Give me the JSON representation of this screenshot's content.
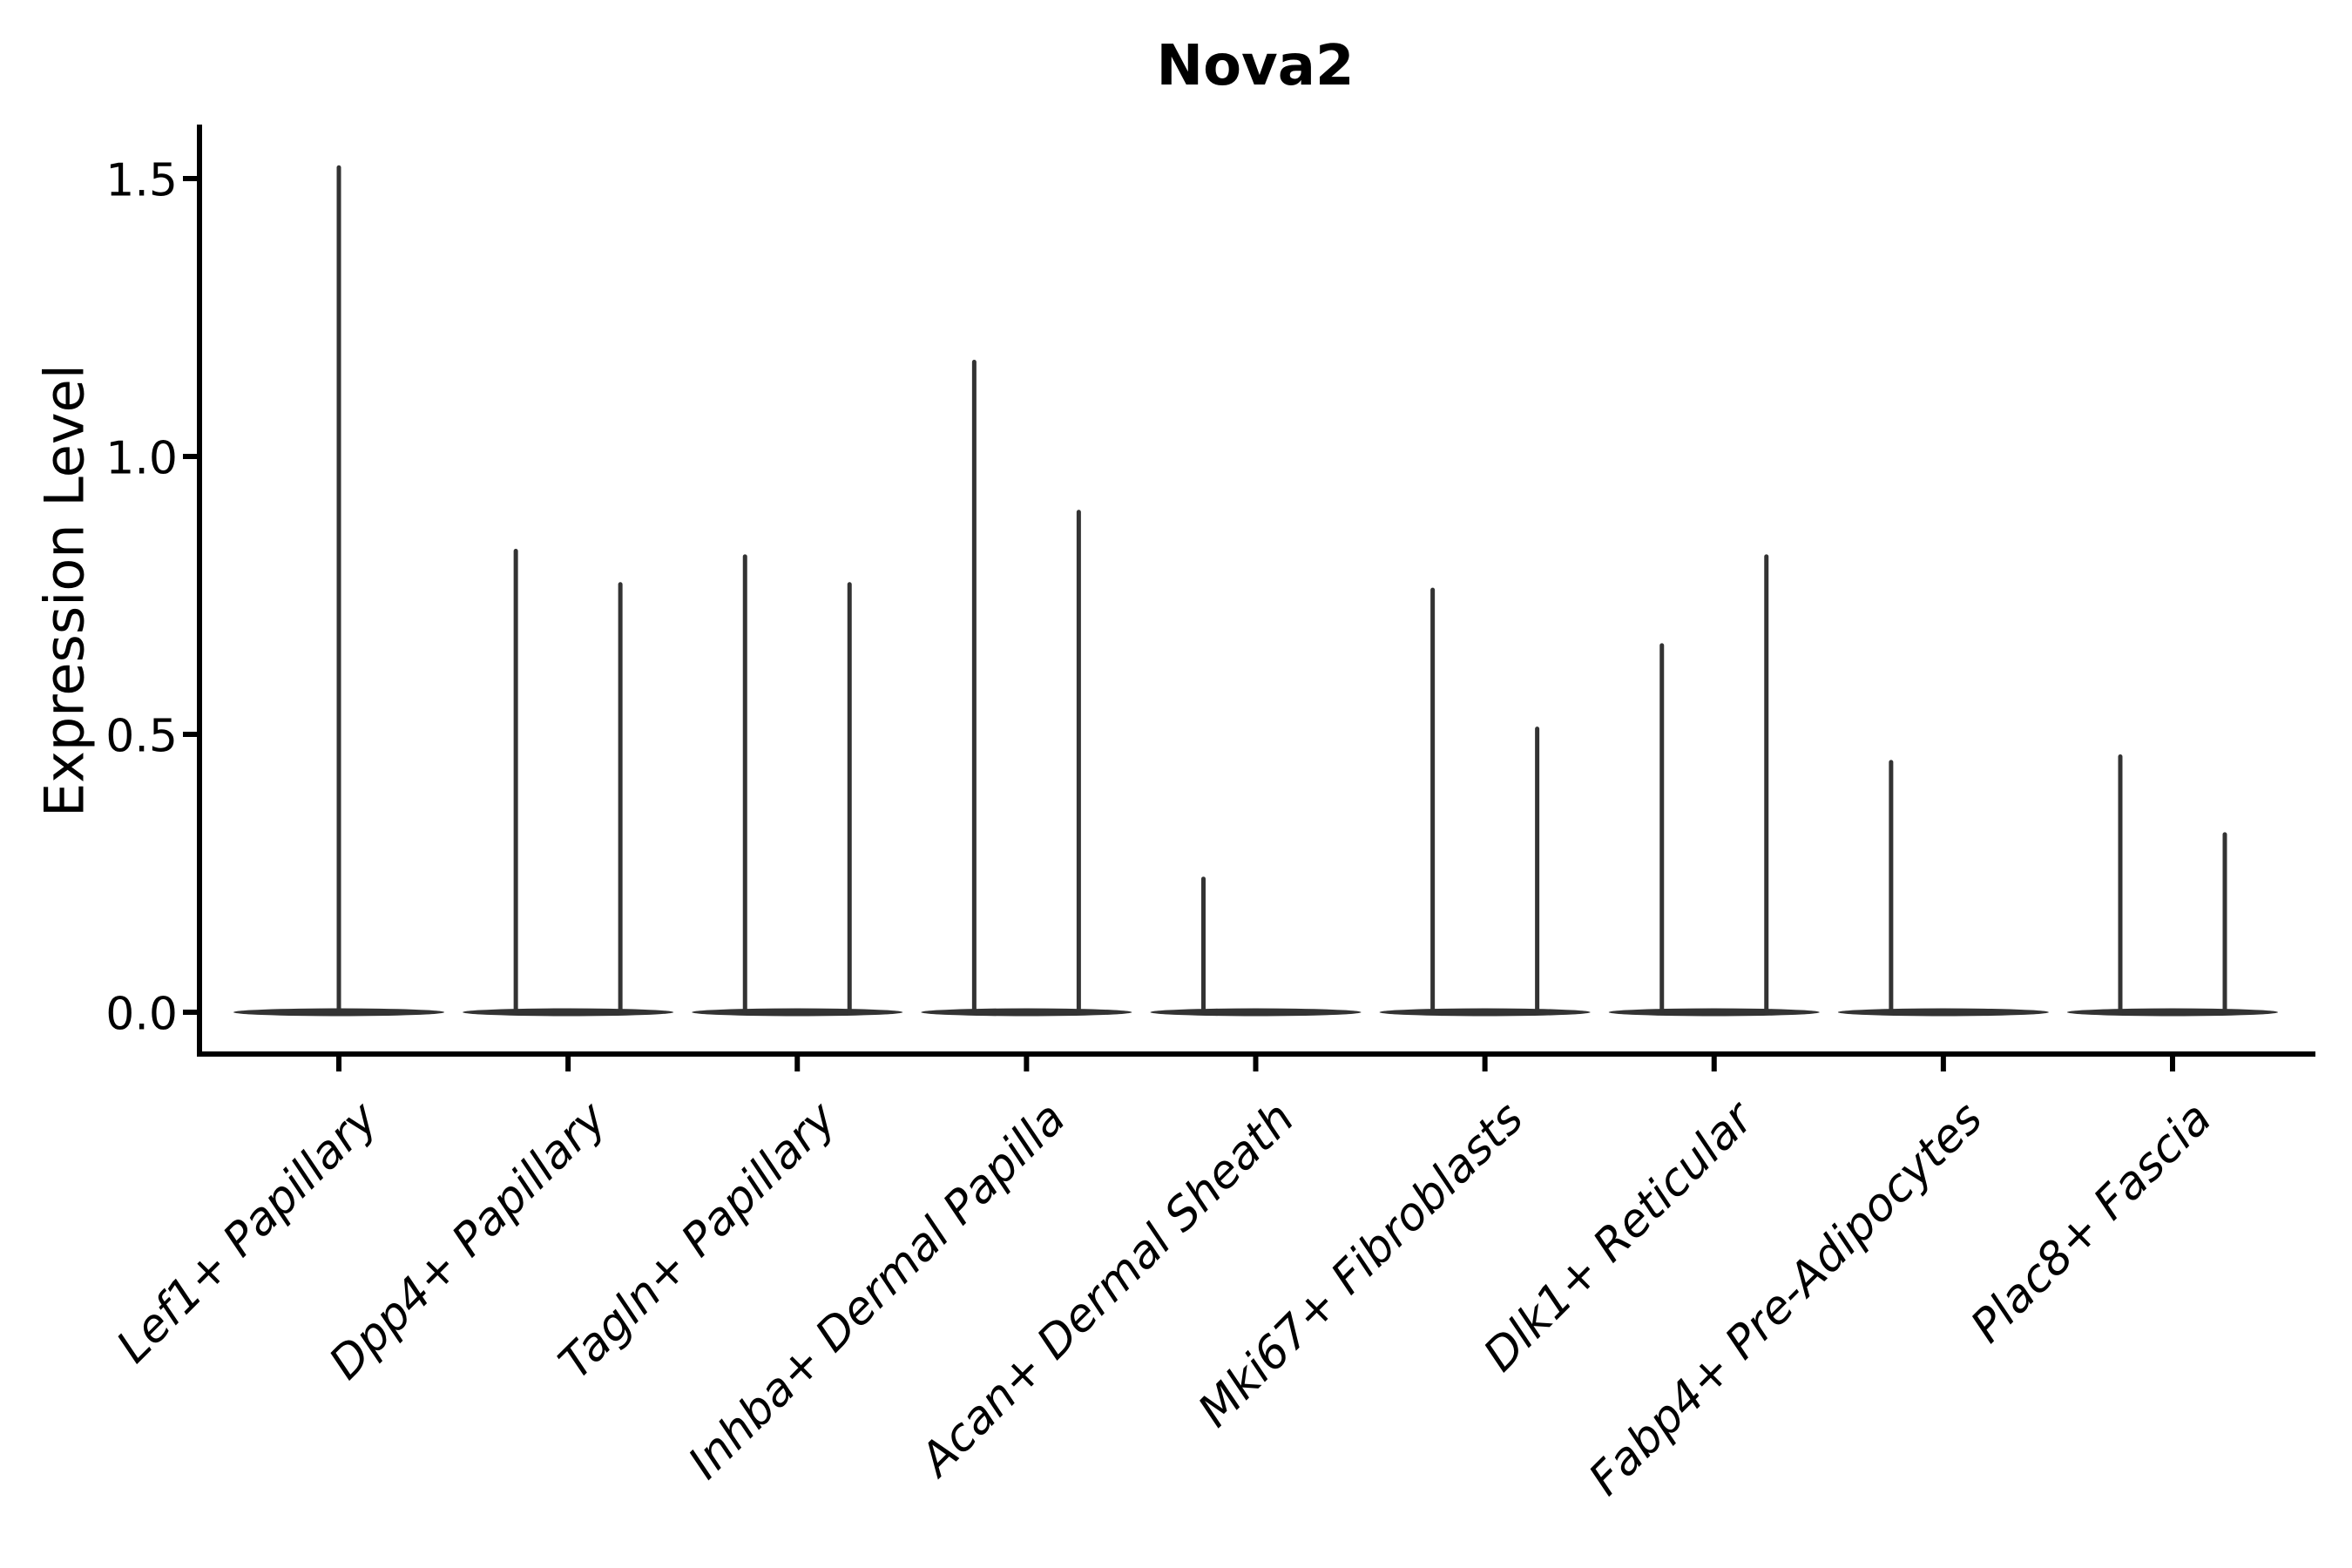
{
  "figure": {
    "title": "Nova2",
    "ylabel": "Expression Level"
  },
  "chart_data": {
    "type": "violin",
    "title": "Nova2",
    "xlabel": "",
    "ylabel": "Expression Level",
    "ylim": [
      -0.07,
      1.6
    ],
    "grid": false,
    "legend": null,
    "y_ticks": [
      0.0,
      0.5,
      1.0,
      1.5
    ],
    "y_tick_labels": [
      "0.0",
      "0.5",
      "1.0",
      "1.5"
    ],
    "categories": [
      "Lef1+ Papillary",
      "Dpp4+ Papillary",
      "Tagln+ Papillary",
      "Inhba+ Dermal Papilla",
      "Acan+ Dermal Sheath",
      "Mki67+ Fibroblasts",
      "Dlk1+ Reticular",
      "Fabp4+ Pre-Adipocytes",
      "Plac8+ Fascia"
    ],
    "violins": [
      {
        "category": "Lef1+ Papillary",
        "baseline": 0.0,
        "spikes": [
          {
            "slot": "center",
            "max": 1.52
          }
        ]
      },
      {
        "category": "Dpp4+ Papillary",
        "baseline": 0.0,
        "spikes": [
          {
            "slot": "left",
            "max": 0.83
          },
          {
            "slot": "right",
            "max": 0.77
          }
        ]
      },
      {
        "category": "Tagln+ Papillary",
        "baseline": 0.0,
        "spikes": [
          {
            "slot": "left",
            "max": 0.82
          },
          {
            "slot": "right",
            "max": 0.77
          }
        ]
      },
      {
        "category": "Inhba+ Dermal Papilla",
        "baseline": 0.0,
        "spikes": [
          {
            "slot": "left",
            "max": 1.17
          },
          {
            "slot": "right",
            "max": 0.9
          }
        ]
      },
      {
        "category": "Acan+ Dermal Sheath",
        "baseline": 0.0,
        "spikes": [
          {
            "slot": "left",
            "max": 0.24
          }
        ]
      },
      {
        "category": "Mki67+ Fibroblasts",
        "baseline": 0.0,
        "spikes": [
          {
            "slot": "left",
            "max": 0.76
          },
          {
            "slot": "right",
            "max": 0.51
          }
        ]
      },
      {
        "category": "Dlk1+ Reticular",
        "baseline": 0.0,
        "spikes": [
          {
            "slot": "left",
            "max": 0.66
          },
          {
            "slot": "right",
            "max": 0.82
          }
        ]
      },
      {
        "category": "Fabp4+ Pre-Adipocytes",
        "baseline": 0.0,
        "spikes": [
          {
            "slot": "left",
            "max": 0.45
          }
        ]
      },
      {
        "category": "Plac8+ Fascia",
        "baseline": 0.0,
        "spikes": [
          {
            "slot": "left",
            "max": 0.46
          },
          {
            "slot": "right",
            "max": 0.32
          }
        ]
      }
    ],
    "colors": {
      "violin": "#333333",
      "axis": "#000000",
      "text": "#000000",
      "background": "#ffffff"
    }
  }
}
